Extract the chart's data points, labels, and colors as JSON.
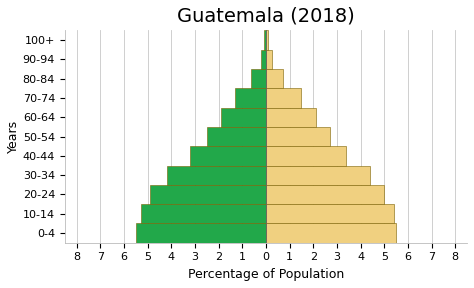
{
  "title": "Guatemala (2018)",
  "xlabel": "Percentage of Population",
  "ylabel": "Years",
  "age_groups": [
    "0-4",
    "10-14",
    "20-24",
    "30-34",
    "40-44",
    "50-54",
    "60-64",
    "70-74",
    "80-84",
    "90-94",
    "100+"
  ],
  "male_values": [
    5.5,
    5.4,
    5.0,
    4.4,
    3.4,
    2.7,
    2.1,
    1.5,
    0.7,
    0.25,
    0.07
  ],
  "female_values": [
    5.5,
    5.3,
    4.9,
    4.2,
    3.2,
    2.5,
    1.9,
    1.3,
    0.65,
    0.22,
    0.1
  ],
  "male_color": "#F0D080",
  "female_color": "#22A84A",
  "edge_color": "#7A6000",
  "xlim": 8.5,
  "background_color": "#FFFFFF",
  "title_fontsize": 14,
  "label_fontsize": 9,
  "tick_fontsize": 8,
  "bar_height": 1.0
}
